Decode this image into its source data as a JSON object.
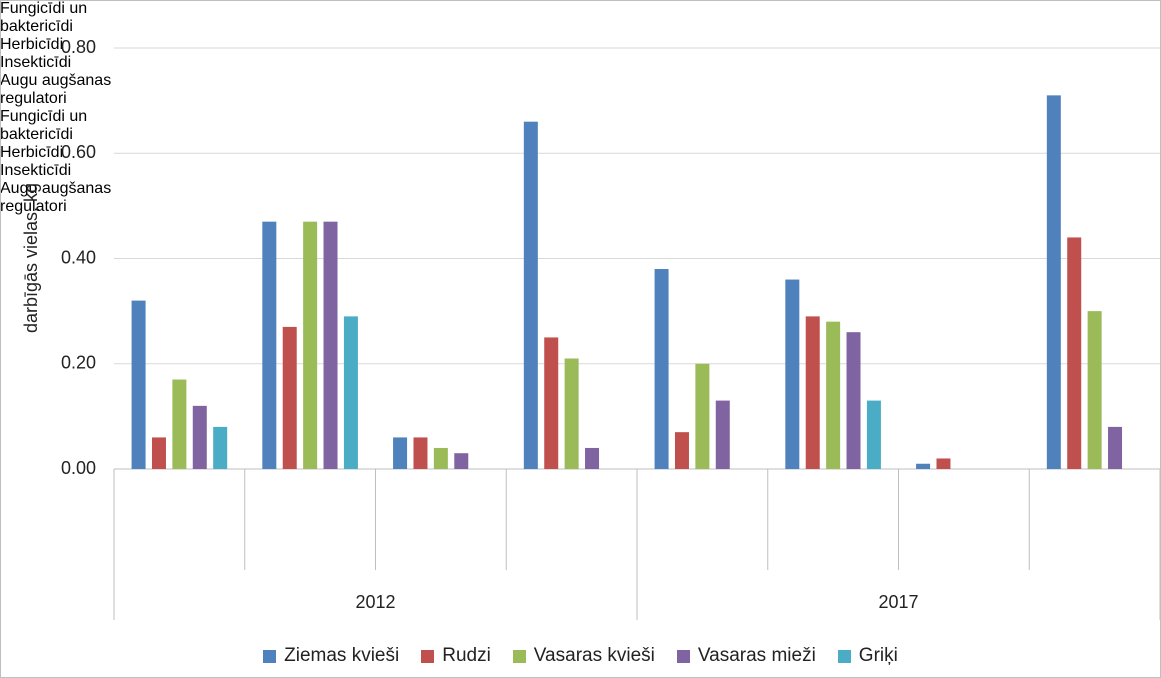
{
  "chart_data": {
    "type": "bar",
    "y_label": "darbīgās vielas, kg",
    "categories": [
      "Fungicīdi un baktericīdi",
      "Herbicīdi",
      "Insekticīdi",
      "Augu augšanas regulatori",
      "Fungicīdi un baktericīdi",
      "Herbicīdi",
      "Insekticīdi",
      "Augu augšanas regulatori"
    ],
    "category_groups": [
      "2012",
      "2017"
    ],
    "series": [
      {
        "name": "Ziemas kvieši",
        "color": "#4f81bd",
        "values": [
          0.32,
          0.47,
          0.06,
          0.66,
          0.38,
          0.36,
          0.01,
          0.71
        ]
      },
      {
        "name": "Rudzi",
        "color": "#c0504d",
        "values": [
          0.06,
          0.27,
          0.06,
          0.25,
          0.07,
          0.29,
          0.02,
          0.44
        ]
      },
      {
        "name": "Vasaras kvieši",
        "color": "#9bbb59",
        "values": [
          0.17,
          0.47,
          0.04,
          0.21,
          0.2,
          0.28,
          null,
          0.3
        ]
      },
      {
        "name": "Vasaras mieži",
        "color": "#8064a2",
        "values": [
          0.12,
          0.47,
          0.03,
          0.04,
          0.13,
          0.26,
          null,
          0.08
        ]
      },
      {
        "name": "Griķi",
        "color": "#4bacc6",
        "values": [
          0.08,
          0.29,
          null,
          null,
          null,
          0.13,
          null,
          null
        ]
      }
    ],
    "ylim": [
      0,
      0.8
    ],
    "yticks": [
      {
        "value": 0,
        "label": "0.00"
      },
      {
        "value": 0.2,
        "label": "0.20"
      },
      {
        "value": 0.4,
        "label": "0.40"
      },
      {
        "value": 0.6,
        "label": "0.60"
      },
      {
        "value": 0.8,
        "label": "0.80"
      }
    ],
    "grid": true,
    "legend": "bottom"
  }
}
